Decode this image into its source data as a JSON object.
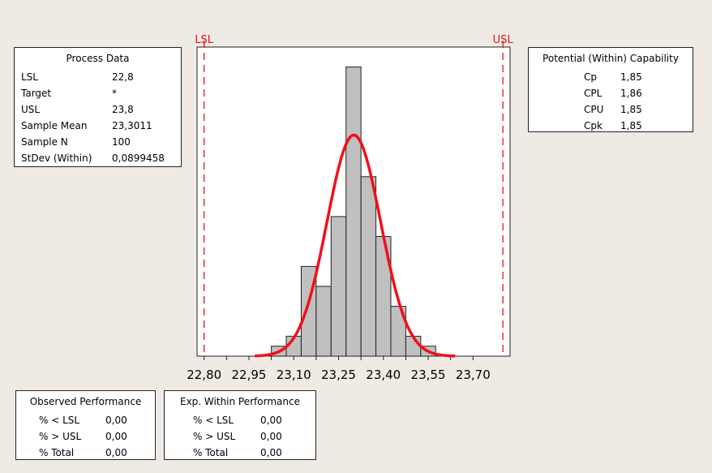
{
  "process_data": {
    "title": "Process Data",
    "rows": [
      {
        "label": "LSL",
        "value": "22,8"
      },
      {
        "label": "Target",
        "value": "*"
      },
      {
        "label": "USL",
        "value": "23,8"
      },
      {
        "label": "Sample Mean",
        "value": "23,3011"
      },
      {
        "label": "Sample N",
        "value": "100"
      },
      {
        "label": "StDev (Within)",
        "value": "0,0899458"
      }
    ]
  },
  "potential_capability": {
    "title": "Potential (Within) Capability",
    "rows": [
      {
        "label": "Cp",
        "value": "1,85"
      },
      {
        "label": "CPL",
        "value": "1,86"
      },
      {
        "label": "CPU",
        "value": "1,85"
      },
      {
        "label": "Cpk",
        "value": "1,85"
      }
    ]
  },
  "observed_performance": {
    "title": "Observed Performance",
    "rows": [
      {
        "label": "% < LSL",
        "value": "0,00"
      },
      {
        "label": "% > USL",
        "value": "0,00"
      },
      {
        "label": "% Total",
        "value": "0,00"
      }
    ]
  },
  "expected_performance": {
    "title": "Exp. Within Performance",
    "rows": [
      {
        "label": "% < LSL",
        "value": "0,00"
      },
      {
        "label": "% > USL",
        "value": "0,00"
      },
      {
        "label": "% Total",
        "value": "0,00"
      }
    ]
  },
  "chart_data": {
    "type": "bar",
    "subtype": "histogram with fitted normal curve",
    "bin_centers": [
      23.05,
      23.1,
      23.15,
      23.2,
      23.25,
      23.3,
      23.35,
      23.4,
      23.45,
      23.5,
      23.55
    ],
    "bin_width": 0.05,
    "counts": [
      1,
      2,
      9,
      7,
      14,
      29,
      18,
      12,
      5,
      2,
      1
    ],
    "normal_fit": {
      "mean": 23.3011,
      "stdev": 0.0899458,
      "n": 100,
      "range": [
        22.97,
        23.64
      ]
    },
    "spec_limits": [
      {
        "name": "LSL",
        "value": 22.8
      },
      {
        "name": "USL",
        "value": 23.8
      }
    ],
    "xticks": [
      "22,80",
      "22,95",
      "23,10",
      "23,25",
      "23,40",
      "23,55",
      "23,70"
    ],
    "xtick_values": [
      22.8,
      22.95,
      23.1,
      23.25,
      23.4,
      23.55,
      23.7
    ],
    "xlim": [
      22.77,
      23.815
    ],
    "ylim": [
      0,
      31
    ],
    "grid": false,
    "colors": {
      "bars": "#c0c0c0",
      "bar_edge": "#222222",
      "curve": "#f0101c",
      "spec_lines": "#e8101a"
    }
  }
}
